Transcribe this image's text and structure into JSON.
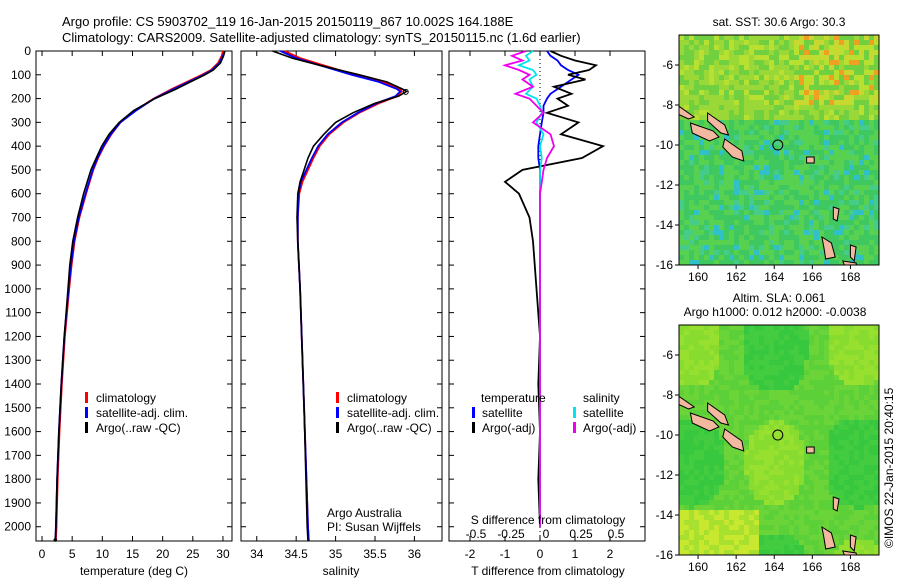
{
  "header": {
    "title_line1": "Argo profile: CS 5903702_119 16-Jan-2015 20150119_867 10.002S 164.188E",
    "title_line2": "Climatology: CARS2009. Satellite-adjusted climatology: synTS_20150115.nc (1.6d earlier)"
  },
  "credit": "Argo Australia",
  "pi": "PI: Susan Wijffels",
  "stamp": "©IMOS 22-Jan-2015 20:40:15",
  "colors": {
    "climatology": "#ff0000",
    "satellite": "#0000ff",
    "argo": "#000000",
    "salinity_satellite": "#00e5ee",
    "salinity_argo": "#ee00ee",
    "land": "#f2b8a0"
  },
  "chart_data": [
    {
      "type": "line",
      "id": "temperature",
      "xlabel": "temperature (deg C)",
      "xlim": [
        -1,
        31.5
      ],
      "ylim": [
        2060,
        0
      ],
      "xticks": [
        0,
        5,
        10,
        15,
        20,
        25,
        30
      ],
      "yticks": [
        0,
        100,
        200,
        300,
        400,
        500,
        600,
        700,
        800,
        900,
        1000,
        1100,
        1200,
        1300,
        1400,
        1500,
        1600,
        1700,
        1800,
        1900,
        2000
      ],
      "depth": [
        0,
        20,
        50,
        80,
        100,
        130,
        160,
        200,
        250,
        300,
        350,
        400,
        450,
        500,
        600,
        700,
        800,
        900,
        1000,
        1200,
        1400,
        1600,
        1800,
        2000,
        2060
      ],
      "series": [
        {
          "name": "climatology",
          "color": "#ff0000",
          "values": [
            30.0,
            29.8,
            29.2,
            28.0,
            26.5,
            24.0,
            21.5,
            18.5,
            15.5,
            13.0,
            11.5,
            10.3,
            9.3,
            8.5,
            7.3,
            6.2,
            5.4,
            4.9,
            4.5,
            3.8,
            3.3,
            2.9,
            2.6,
            2.4,
            2.3
          ]
        },
        {
          "name": "satellite-adj. clim.",
          "color": "#0000ff",
          "values": [
            30.3,
            30.0,
            29.4,
            28.2,
            26.8,
            24.3,
            21.8,
            18.6,
            15.6,
            13.0,
            11.4,
            10.2,
            9.2,
            8.4,
            7.2,
            6.1,
            5.3,
            4.8,
            4.4,
            3.7,
            3.2,
            2.8,
            2.5,
            2.3,
            2.2
          ]
        },
        {
          "name": "Argo(..raw -QC)",
          "color": "#000000",
          "values": [
            30.3,
            30.1,
            29.6,
            28.4,
            27.0,
            24.6,
            22.2,
            18.7,
            15.2,
            12.8,
            11.1,
            9.9,
            9.0,
            8.1,
            6.9,
            5.9,
            5.1,
            4.6,
            4.3,
            3.7,
            3.2,
            2.8,
            2.5,
            2.3,
            2.2
          ]
        }
      ]
    },
    {
      "type": "line",
      "id": "salinity",
      "xlabel": "salinity",
      "xlim": [
        33.8,
        36.35
      ],
      "ylim": [
        2060,
        0
      ],
      "xticks": [
        34,
        34.5,
        35,
        35.5,
        36
      ],
      "depth": [
        0,
        30,
        60,
        100,
        130,
        160,
        170,
        190,
        220,
        260,
        300,
        350,
        400,
        450,
        500,
        550,
        600,
        700,
        800,
        1000,
        1500,
        2000,
        2060
      ],
      "series": [
        {
          "name": "climatology",
          "color": "#ff0000",
          "values": [
            34.35,
            34.55,
            34.85,
            35.25,
            35.6,
            35.82,
            35.84,
            35.78,
            35.55,
            35.3,
            35.1,
            34.92,
            34.8,
            34.72,
            34.65,
            34.58,
            34.54,
            34.52,
            34.52,
            34.55,
            34.6,
            34.65,
            34.66
          ]
        },
        {
          "name": "satellite-adj. clim.",
          "color": "#0000ff",
          "values": [
            34.3,
            34.5,
            34.8,
            35.2,
            35.55,
            35.78,
            35.82,
            35.76,
            35.52,
            35.28,
            35.08,
            34.9,
            34.78,
            34.7,
            34.63,
            34.56,
            34.53,
            34.52,
            34.52,
            34.55,
            34.6,
            34.65,
            34.66
          ]
        },
        {
          "name": "Argo(..raw -QC)",
          "color": "#000000",
          "values": [
            34.2,
            34.45,
            34.8,
            35.3,
            35.65,
            35.85,
            35.9,
            35.8,
            35.5,
            35.22,
            35.0,
            34.85,
            34.72,
            34.65,
            34.6,
            34.55,
            34.52,
            34.51,
            34.52,
            34.55,
            34.6,
            34.64,
            34.65
          ]
        }
      ]
    },
    {
      "type": "line",
      "id": "difference",
      "xlabel_top": "S difference from climatology",
      "xlabel": "T difference from climatology",
      "xlim": [
        -2.6,
        3.0
      ],
      "ylim": [
        2060,
        0
      ],
      "xticks": [
        -2,
        -1,
        0,
        1,
        2
      ],
      "xticks_top": [
        "-0.5",
        "-0.25",
        "0",
        "0.25",
        "0.5"
      ],
      "legend_headers": [
        "temperature",
        "salinity"
      ],
      "depth": [
        0,
        20,
        40,
        60,
        80,
        100,
        120,
        150,
        180,
        200,
        230,
        260,
        300,
        350,
        400,
        450,
        500,
        550,
        600,
        700,
        800,
        1000,
        1200,
        1400,
        1600,
        1800,
        2000
      ],
      "series": [
        {
          "name": "satellite",
          "group": "temperature",
          "color": "#0000ff",
          "values": [
            0.2,
            0.3,
            0.5,
            0.6,
            0.8,
            1.1,
            0.9,
            0.6,
            0.3,
            0.2,
            0.1,
            0.1,
            0.05,
            0.0,
            -0.05,
            -0.05,
            0.0,
            0.0,
            0.0,
            0.0,
            0.0,
            0.0,
            0.0,
            0.0,
            0.0,
            0.0,
            0.0
          ]
        },
        {
          "name": "Argo(-adj)",
          "group": "temperature",
          "color": "#000000",
          "values": [
            0.3,
            0.6,
            1.0,
            1.6,
            1.4,
            0.8,
            1.3,
            0.4,
            0.9,
            0.5,
            0.8,
            0.2,
            1.1,
            0.6,
            1.8,
            1.2,
            -0.5,
            -1.0,
            -0.6,
            -0.3,
            -0.2,
            -0.1,
            0.0,
            -0.05,
            0.0,
            -0.05,
            0.0
          ]
        },
        {
          "name": "satellite",
          "group": "salinity",
          "color": "#00e5ee",
          "values": [
            -0.2,
            -0.4,
            -0.3,
            -0.6,
            -0.2,
            -0.1,
            -0.3,
            -0.2,
            -0.4,
            -0.1,
            0.0,
            0.05,
            -0.1,
            0.1,
            0.0,
            0.05,
            0.0,
            0.0,
            0.0,
            0.0,
            0.0,
            0.0,
            0.0,
            0.0,
            0.0,
            0.0,
            0.0
          ]
        },
        {
          "name": "Argo(-adj)",
          "group": "salinity",
          "color": "#ee00ee",
          "values": [
            -0.4,
            -0.8,
            -0.5,
            -1.0,
            -0.6,
            -0.3,
            -0.5,
            -0.2,
            -0.7,
            -0.3,
            -0.1,
            0.1,
            -0.2,
            0.3,
            0.4,
            0.2,
            0.1,
            0.05,
            0.0,
            0.0,
            0.0,
            0.0,
            0.0,
            0.0,
            0.0,
            0.0,
            0.0
          ]
        }
      ]
    },
    {
      "type": "heatmap",
      "id": "sst_map",
      "title": "sat. SST: 30.6  Argo: 30.3",
      "xlim": [
        159,
        169.5
      ],
      "ylim": [
        -16,
        -4.5
      ],
      "xticks": [
        160,
        162,
        164,
        166,
        168
      ],
      "yticks": [
        -6,
        -8,
        -10,
        -12,
        -14,
        -16
      ],
      "argo_position": {
        "lon": 164.188,
        "lat": -10.002
      }
    },
    {
      "type": "heatmap",
      "id": "sla_map",
      "title_line1": "Altim. SLA: 0.061",
      "title_line2": "Argo h1000: 0.012 h2000: -0.0038",
      "xlim": [
        159,
        169.5
      ],
      "ylim": [
        -16,
        -4.5
      ],
      "xticks": [
        160,
        162,
        164,
        166,
        168
      ],
      "yticks": [
        -6,
        -8,
        -10,
        -12,
        -14,
        -16
      ],
      "argo_position": {
        "lon": 164.188,
        "lat": -10.002
      }
    }
  ]
}
